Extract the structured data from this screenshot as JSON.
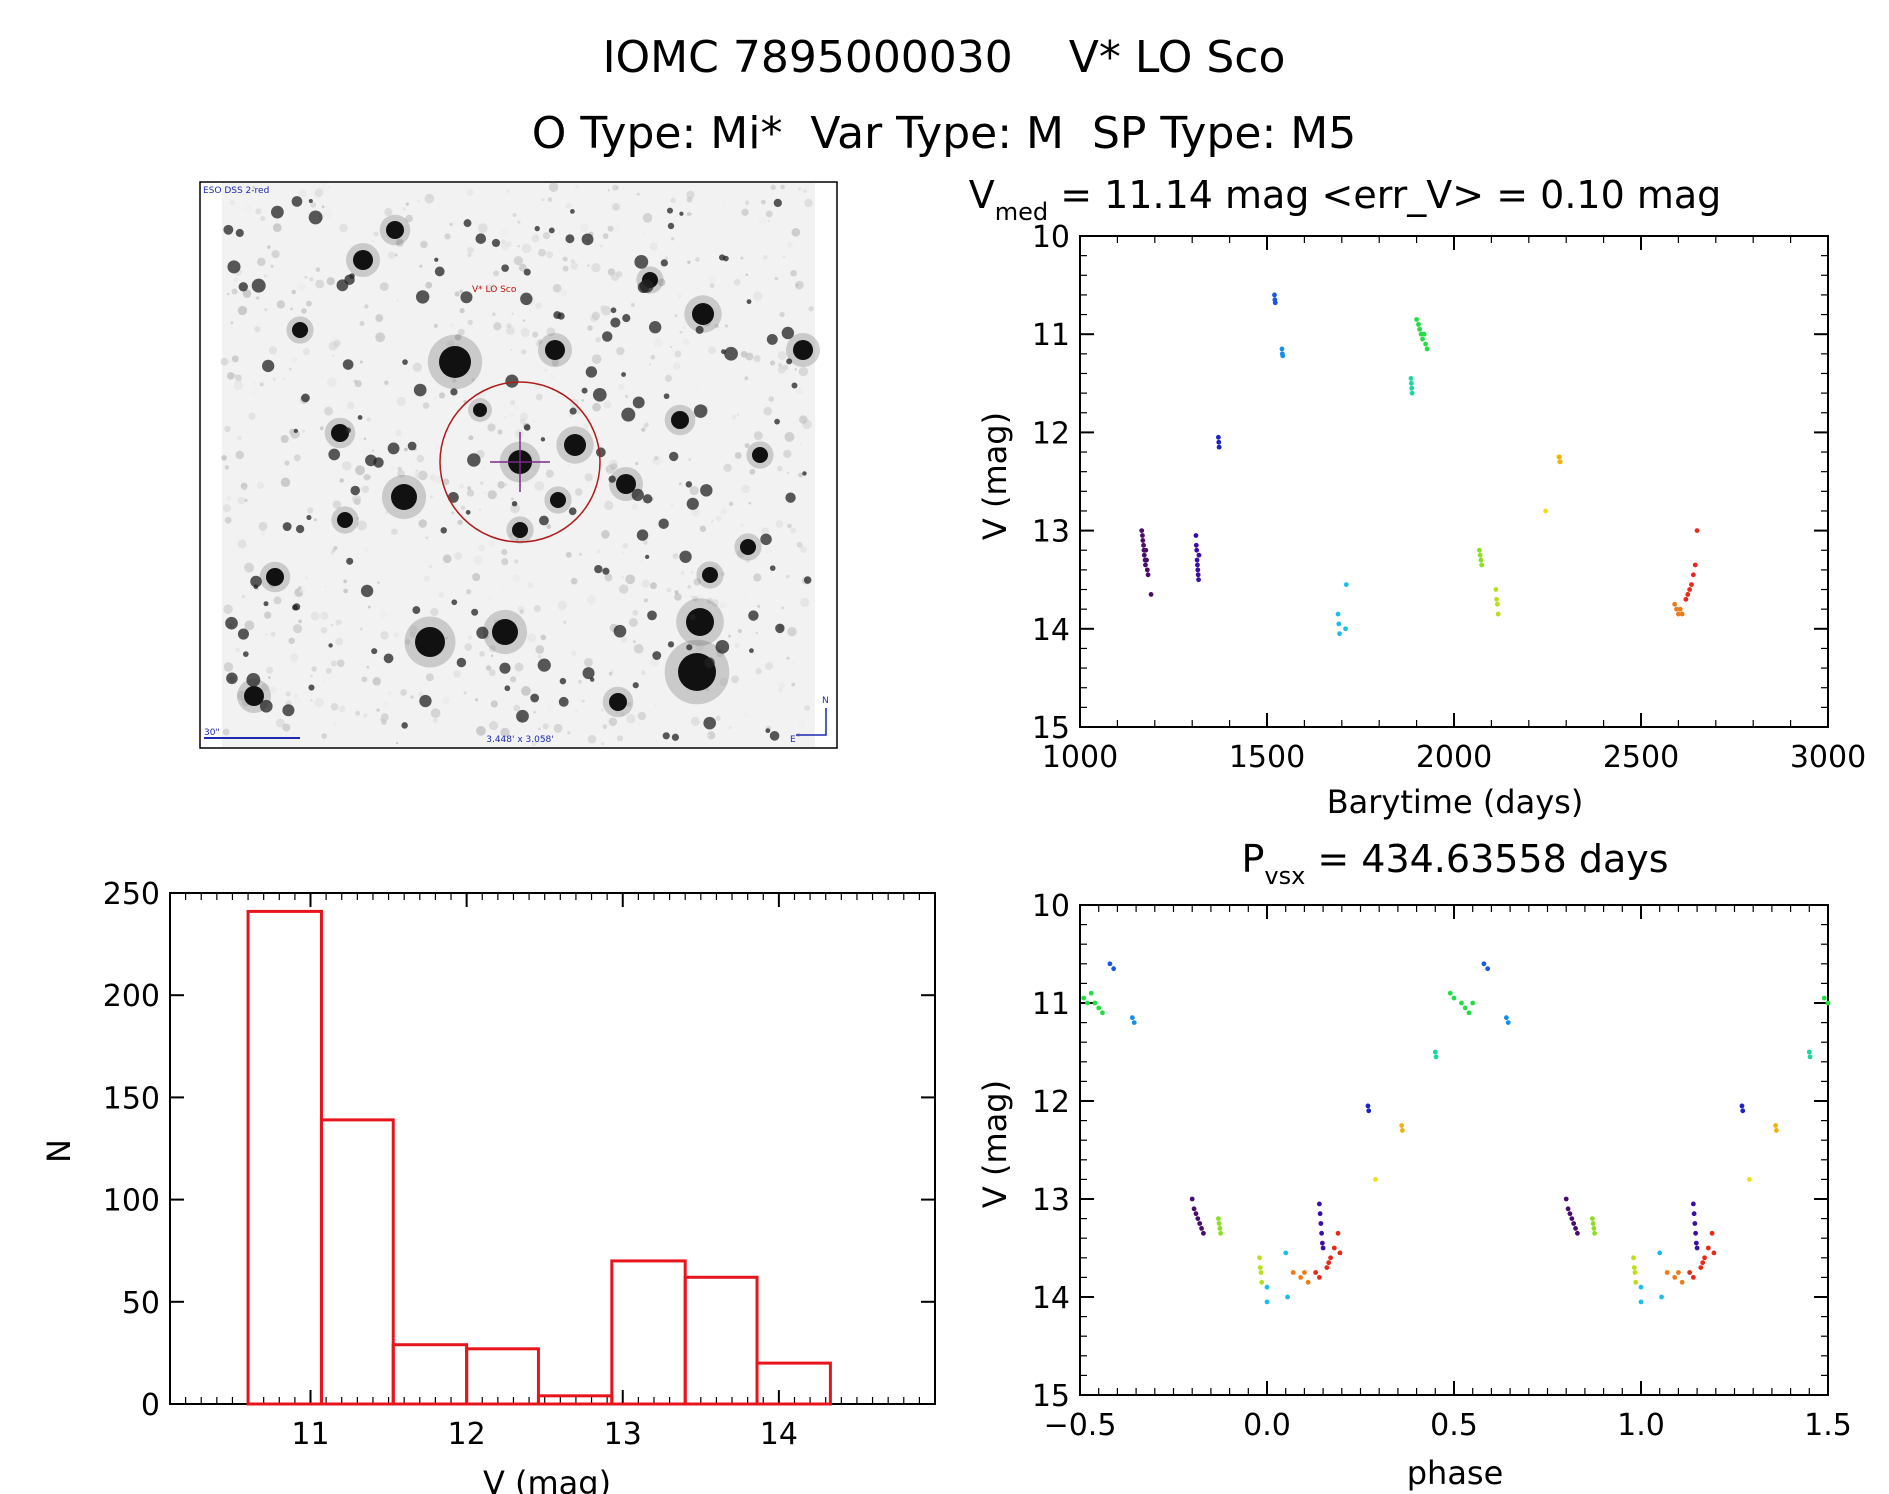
{
  "header": {
    "title_line1": "IOMC 7895000030    V* LO Sco",
    "title_line2": "O Type: Mi*  Var Type: M  SP Type: M5"
  },
  "image_panel": {
    "caption_top_left": "ESO DSS 2-red",
    "target_label": "V* LO Sco",
    "scale_label": "30\"",
    "field_size": "3.448' x 3.058'",
    "north_label": "N",
    "east_label": "E"
  },
  "colors": {
    "histogram": "#e8141c",
    "circle": "#b01c1c",
    "crosshair": "#7a2a8a",
    "compass": "#1c2ab0"
  },
  "chart_data": [
    {
      "id": "lightcurve",
      "type": "scatter",
      "title_prefix": "V",
      "title_sub": "med",
      "title_rest": " = 11.14 mag <err_V> = 0.10 mag",
      "xlabel": "Barytime (days)",
      "ylabel": "V (mag)",
      "xlim": [
        1000,
        3000
      ],
      "ylim": [
        10,
        15
      ],
      "y_inverted": true,
      "xticks": [
        "1000",
        "1500",
        "2000",
        "2500",
        "3000"
      ],
      "yticks": [
        "10",
        "11",
        "12",
        "13",
        "14",
        "15"
      ],
      "series": [
        {
          "color": "#4a0a6e",
          "points": [
            [
              1165,
              13.0
            ],
            [
              1167,
              13.05
            ],
            [
              1168,
              13.1
            ],
            [
              1170,
              13.15
            ],
            [
              1171,
              13.2
            ],
            [
              1172,
              13.25
            ],
            [
              1174,
              13.3
            ],
            [
              1175,
              13.35
            ],
            [
              1176,
              13.2
            ],
            [
              1178,
              13.3
            ],
            [
              1180,
              13.4
            ],
            [
              1182,
              13.45
            ],
            [
              1190,
              13.65
            ]
          ]
        },
        {
          "color": "#3a0ca8",
          "points": [
            [
              1310,
              13.05
            ],
            [
              1311,
              13.15
            ],
            [
              1312,
              13.2
            ],
            [
              1313,
              13.3
            ],
            [
              1314,
              13.35
            ],
            [
              1315,
              13.4
            ],
            [
              1316,
              13.45
            ],
            [
              1317,
              13.5
            ],
            [
              1318,
              13.25
            ]
          ]
        },
        {
          "color": "#1a22c8",
          "points": [
            [
              1370,
              12.05
            ],
            [
              1371,
              12.1
            ],
            [
              1372,
              12.15
            ]
          ]
        },
        {
          "color": "#1856e8",
          "points": [
            [
              1520,
              10.6
            ],
            [
              1521,
              10.65
            ],
            [
              1522,
              10.68
            ]
          ]
        },
        {
          "color": "#148ee8",
          "points": [
            [
              1540,
              11.15
            ],
            [
              1541,
              11.2
            ],
            [
              1542,
              11.22
            ]
          ]
        },
        {
          "color": "#18c0e8",
          "points": [
            [
              1690,
              13.85
            ],
            [
              1692,
              13.95
            ],
            [
              1694,
              14.05
            ],
            [
              1710,
              14.0
            ],
            [
              1712,
              13.55
            ]
          ]
        },
        {
          "color": "#18d8a0",
          "points": [
            [
              1885,
              11.45
            ],
            [
              1886,
              11.5
            ],
            [
              1887,
              11.55
            ],
            [
              1888,
              11.6
            ]
          ]
        },
        {
          "color": "#20e040",
          "points": [
            [
              1900,
              10.85
            ],
            [
              1905,
              10.9
            ],
            [
              1908,
              10.95
            ],
            [
              1912,
              11.0
            ],
            [
              1916,
              11.05
            ],
            [
              1920,
              11.0
            ],
            [
              1924,
              11.1
            ],
            [
              1928,
              11.15
            ]
          ]
        },
        {
          "color": "#8ae020",
          "points": [
            [
              2068,
              13.2
            ],
            [
              2070,
              13.25
            ],
            [
              2072,
              13.3
            ],
            [
              2074,
              13.35
            ]
          ]
        },
        {
          "color": "#b8e018",
          "points": [
            [
              2112,
              13.6
            ],
            [
              2114,
              13.7
            ],
            [
              2116,
              13.75
            ],
            [
              2118,
              13.85
            ]
          ]
        },
        {
          "color": "#f0e010",
          "points": [
            [
              2245,
              12.8
            ],
            [
              2280,
              12.25
            ],
            [
              2282,
              12.3
            ]
          ]
        },
        {
          "color": "#f0b010",
          "points": [
            [
              2282,
              12.25
            ],
            [
              2284,
              12.3
            ]
          ]
        },
        {
          "color": "#f07a18",
          "points": [
            [
              2590,
              13.75
            ],
            [
              2595,
              13.8
            ],
            [
              2600,
              13.85
            ],
            [
              2605,
              13.8
            ],
            [
              2610,
              13.85
            ]
          ]
        },
        {
          "color": "#e82818",
          "points": [
            [
              2620,
              13.7
            ],
            [
              2625,
              13.65
            ],
            [
              2630,
              13.6
            ],
            [
              2635,
              13.55
            ],
            [
              2640,
              13.45
            ],
            [
              2645,
              13.35
            ],
            [
              2650,
              13.0
            ]
          ]
        }
      ]
    },
    {
      "id": "histogram",
      "type": "bar",
      "title": "",
      "xlabel": "V (mag)",
      "ylabel": "N",
      "xlim": [
        10.1,
        15.0
      ],
      "ylim": [
        0,
        250
      ],
      "xticks": [
        "11",
        "12",
        "13",
        "14"
      ],
      "yticks": [
        "0",
        "50",
        "100",
        "150",
        "200",
        "250"
      ],
      "bins": [
        {
          "x0": 10.6,
          "x1": 11.07,
          "value": 241
        },
        {
          "x0": 11.07,
          "x1": 11.53,
          "value": 139
        },
        {
          "x0": 11.53,
          "x1": 12.0,
          "value": 29
        },
        {
          "x0": 12.0,
          "x1": 12.46,
          "value": 27
        },
        {
          "x0": 12.46,
          "x1": 12.93,
          "value": 4
        },
        {
          "x0": 12.93,
          "x1": 13.4,
          "value": 70
        },
        {
          "x0": 13.4,
          "x1": 13.86,
          "value": 62
        },
        {
          "x0": 13.86,
          "x1": 14.33,
          "value": 20
        }
      ]
    },
    {
      "id": "phased",
      "type": "scatter",
      "title_prefix": "P",
      "title_sub": "vsx",
      "title_rest": " = 434.63558 days",
      "xlabel": "phase",
      "ylabel": "V (mag)",
      "xlim": [
        -0.5,
        1.5
      ],
      "ylim": [
        10,
        15
      ],
      "y_inverted": true,
      "xticks": [
        "−0.5",
        "0.0",
        "0.5",
        "1.0",
        "1.5"
      ],
      "yticks": [
        "10",
        "11",
        "12",
        "13",
        "14",
        "15"
      ],
      "series": [
        {
          "color": "#20e040",
          "points": [
            [
              -0.49,
              10.95
            ],
            [
              -0.48,
              11.0
            ],
            [
              -0.47,
              10.9
            ],
            [
              -0.46,
              11.0
            ],
            [
              -0.45,
              11.05
            ],
            [
              -0.44,
              11.1
            ],
            [
              0.49,
              10.9
            ],
            [
              0.5,
              10.95
            ],
            [
              0.52,
              11.0
            ],
            [
              0.53,
              11.05
            ],
            [
              0.54,
              11.1
            ],
            [
              0.55,
              11.0
            ],
            [
              1.49,
              10.95
            ],
            [
              1.5,
              11.0
            ]
          ]
        },
        {
          "color": "#1856e8",
          "points": [
            [
              -0.42,
              10.6
            ],
            [
              -0.41,
              10.65
            ],
            [
              0.58,
              10.6
            ],
            [
              0.59,
              10.65
            ]
          ]
        },
        {
          "color": "#148ee8",
          "points": [
            [
              -0.36,
              11.15
            ],
            [
              -0.355,
              11.2
            ],
            [
              0.64,
              11.15
            ],
            [
              0.645,
              11.2
            ]
          ]
        },
        {
          "color": "#1a22c8",
          "points": [
            [
              0.27,
              12.05
            ],
            [
              0.272,
              12.1
            ],
            [
              1.27,
              12.05
            ],
            [
              1.272,
              12.1
            ]
          ]
        },
        {
          "color": "#f0e010",
          "points": [
            [
              0.29,
              12.8
            ],
            [
              1.29,
              12.8
            ]
          ]
        },
        {
          "color": "#f0b010",
          "points": [
            [
              0.36,
              12.25
            ],
            [
              0.362,
              12.3
            ],
            [
              1.36,
              12.25
            ],
            [
              1.362,
              12.3
            ]
          ]
        },
        {
          "color": "#18d8a0",
          "points": [
            [
              0.45,
              11.5
            ],
            [
              0.452,
              11.55
            ],
            [
              1.45,
              11.5
            ],
            [
              1.452,
              11.55
            ]
          ]
        },
        {
          "color": "#4a0a6e",
          "points": [
            [
              -0.2,
              13.0
            ],
            [
              -0.195,
              13.1
            ],
            [
              -0.19,
              13.15
            ],
            [
              -0.185,
              13.2
            ],
            [
              -0.18,
              13.25
            ],
            [
              -0.175,
              13.3
            ],
            [
              -0.17,
              13.35
            ],
            [
              0.8,
              13.0
            ],
            [
              0.805,
              13.1
            ],
            [
              0.81,
              13.15
            ],
            [
              0.815,
              13.2
            ],
            [
              0.82,
              13.25
            ],
            [
              0.825,
              13.3
            ],
            [
              0.83,
              13.35
            ]
          ]
        },
        {
          "color": "#8ae020",
          "points": [
            [
              -0.13,
              13.2
            ],
            [
              -0.128,
              13.25
            ],
            [
              -0.126,
              13.3
            ],
            [
              -0.124,
              13.35
            ],
            [
              0.87,
              13.2
            ],
            [
              0.872,
              13.25
            ],
            [
              0.874,
              13.3
            ],
            [
              0.876,
              13.35
            ]
          ]
        },
        {
          "color": "#b8e018",
          "points": [
            [
              -0.02,
              13.6
            ],
            [
              -0.018,
              13.7
            ],
            [
              -0.016,
              13.75
            ],
            [
              -0.014,
              13.85
            ],
            [
              0.98,
              13.6
            ],
            [
              0.982,
              13.7
            ],
            [
              0.984,
              13.75
            ],
            [
              0.986,
              13.85
            ]
          ]
        },
        {
          "color": "#18c0e8",
          "points": [
            [
              0.0,
              13.9
            ],
            [
              0.0,
              14.05
            ],
            [
              0.05,
              13.55
            ],
            [
              0.055,
              14.0
            ],
            [
              1.0,
              13.9
            ],
            [
              1.0,
              14.05
            ],
            [
              1.05,
              13.55
            ],
            [
              1.055,
              14.0
            ]
          ]
        },
        {
          "color": "#f07a18",
          "points": [
            [
              0.07,
              13.75
            ],
            [
              0.09,
              13.8
            ],
            [
              0.1,
              13.75
            ],
            [
              0.11,
              13.85
            ],
            [
              1.07,
              13.75
            ],
            [
              1.09,
              13.8
            ],
            [
              1.1,
              13.75
            ],
            [
              1.11,
              13.85
            ]
          ]
        },
        {
          "color": "#e82818",
          "points": [
            [
              0.13,
              13.75
            ],
            [
              0.14,
              13.8
            ],
            [
              0.16,
              13.7
            ],
            [
              0.165,
              13.65
            ],
            [
              0.17,
              13.6
            ],
            [
              0.18,
              13.5
            ],
            [
              0.19,
              13.35
            ],
            [
              0.195,
              13.55
            ],
            [
              1.13,
              13.75
            ],
            [
              1.14,
              13.8
            ],
            [
              1.16,
              13.7
            ],
            [
              1.165,
              13.65
            ],
            [
              1.17,
              13.6
            ],
            [
              1.18,
              13.5
            ],
            [
              1.19,
              13.35
            ],
            [
              1.195,
              13.55
            ]
          ]
        },
        {
          "color": "#3a0ca8",
          "points": [
            [
              0.14,
              13.05
            ],
            [
              0.142,
              13.15
            ],
            [
              0.144,
              13.25
            ],
            [
              0.146,
              13.35
            ],
            [
              0.148,
              13.45
            ],
            [
              0.15,
              13.5
            ],
            [
              1.14,
              13.05
            ],
            [
              1.142,
              13.15
            ],
            [
              1.144,
              13.25
            ],
            [
              1.146,
              13.35
            ],
            [
              1.148,
              13.45
            ],
            [
              1.15,
              13.5
            ]
          ]
        }
      ]
    }
  ]
}
